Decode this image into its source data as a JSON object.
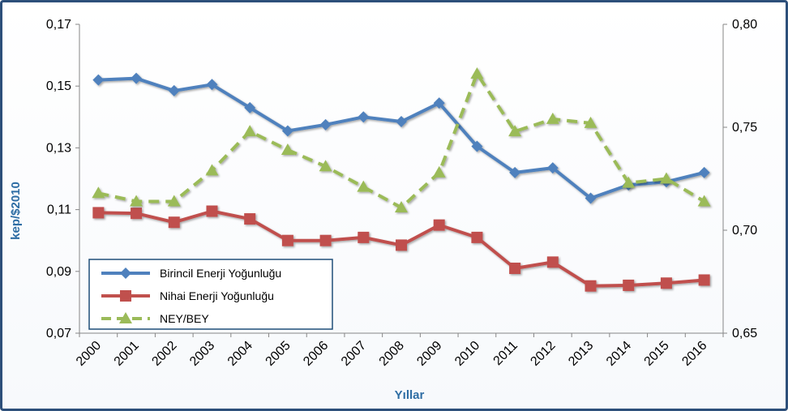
{
  "chart_data": {
    "type": "line",
    "title": "",
    "xlabel": "Yıllar",
    "ylabel": "kep/$2010",
    "y2label": "",
    "categories": [
      "2000",
      "2001",
      "2002",
      "2003",
      "2004",
      "2005",
      "2006",
      "2007",
      "2008",
      "2009",
      "2010",
      "2011",
      "2012",
      "2013",
      "2014",
      "2015",
      "2016"
    ],
    "ylim": [
      0.07,
      0.17
    ],
    "yticks": [
      "0,07",
      "0,09",
      "0,11",
      "0,13",
      "0,15",
      "0,17"
    ],
    "y2lim": [
      0.65,
      0.8
    ],
    "y2ticks": [
      "0,65",
      "0,70",
      "0,75",
      "0,80"
    ],
    "grid": false,
    "legend_position": "bottom-left",
    "series": [
      {
        "name": "Birincil Enerji Yoğunluğu",
        "axis": "left",
        "color": "#4f81bd",
        "marker": "diamond",
        "dash": "solid",
        "values": [
          0.152,
          0.1525,
          0.1485,
          0.1505,
          0.143,
          0.1355,
          0.1375,
          0.14,
          0.1385,
          0.1445,
          0.1305,
          0.122,
          0.1235,
          0.1137,
          0.118,
          0.119,
          0.122
        ]
      },
      {
        "name": "Nihai Enerji Yoğunluğu",
        "axis": "left",
        "color": "#c0504d",
        "marker": "square",
        "dash": "solid",
        "values": [
          0.109,
          0.1088,
          0.1059,
          0.1095,
          0.107,
          0.1,
          0.1,
          0.101,
          0.0985,
          0.105,
          0.101,
          0.091,
          0.093,
          0.0853,
          0.0855,
          0.0862,
          0.0872
        ]
      },
      {
        "name": "NEY/BEY",
        "axis": "right",
        "color": "#9bbb59",
        "marker": "triangle",
        "dash": "dashed",
        "values": [
          0.718,
          0.714,
          0.714,
          0.729,
          0.748,
          0.739,
          0.731,
          0.721,
          0.711,
          0.728,
          0.776,
          0.748,
          0.754,
          0.752,
          0.723,
          0.725,
          0.714
        ]
      }
    ]
  }
}
